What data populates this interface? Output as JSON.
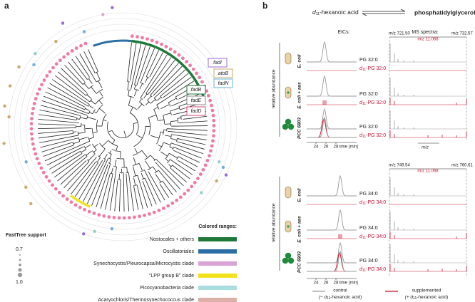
{
  "panel_a": {
    "label": "a",
    "genes": [
      "fadI",
      "atoB",
      "fadN",
      "fadB",
      "fadE",
      "fadD"
    ],
    "support": {
      "title": "FastTree support",
      "min": "0.7",
      "max": "1.0"
    },
    "ranges": {
      "title": "Colored ranges:",
      "items": [
        "Nostocales + others",
        "Oscillatoriales",
        "Synechocystis/Pleurocapsa/Microcystis clade",
        "“LPP group B” clade",
        "Picocyanobacteria clade",
        "Acaryochloris/Thermosynechococcus clade"
      ]
    }
  },
  "panel_b": {
    "label": "b",
    "header": {
      "substrate": {
        "pre": "d",
        "sub": "11",
        "rest": "-hexanoic acid"
      },
      "product": "phosphatidylglycerols"
    },
    "columns": [
      "EICs:",
      "MS spectra:"
    ],
    "y_label": "relative abundance",
    "strains": [
      "E. coli",
      "E. coli + aas",
      "PCC 6803"
    ],
    "blocks": [
      {
        "mz_left": "m/z 721.50",
        "mz_right": "m/z 732.57",
        "mz_delta": "m/z 11.068",
        "control": "PG 32:0",
        "labeled": {
          "pre": "d",
          "sub": "11",
          "rest": "-PG 32:0"
        },
        "time_ticks": [
          "24",
          "26",
          "28"
        ],
        "time_label": "time (min)",
        "mz_axis": "m/z"
      },
      {
        "mz_left": "m/z 749.54",
        "mz_right": "m/z 760.61",
        "mz_delta": "m/z 11.068",
        "control": "PG 34:0",
        "labeled": {
          "pre": "d",
          "sub": "11",
          "rest": "-PG 34:0"
        },
        "time_ticks": [
          "24",
          "26",
          "28"
        ],
        "time_label": "time (min)"
      }
    ],
    "legend": {
      "control": "control",
      "control_note": {
        "pre": "(− d",
        "sub": "11",
        "rest": "-hexanoic acid)"
      },
      "supplemented": "supplemented",
      "supplemented_note": {
        "pre": "(+ d",
        "sub": "11",
        "rest": "-hexanoic acid)"
      }
    }
  }
}
